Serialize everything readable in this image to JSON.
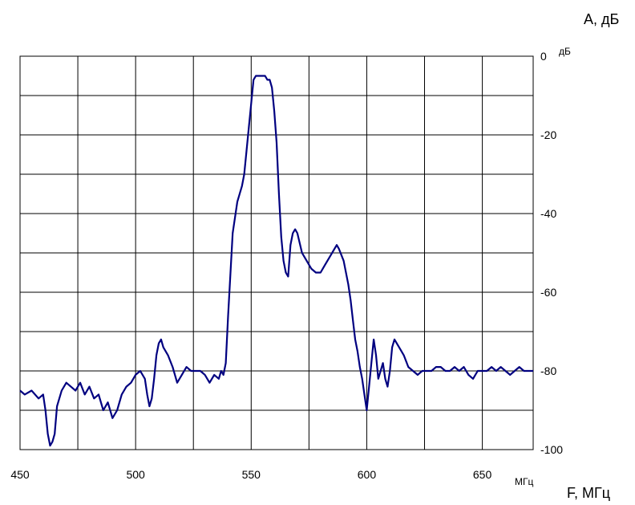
{
  "chart_data": {
    "type": "line",
    "title": "",
    "ylabel": "А, дБ",
    "y_unit": "дБ",
    "xlabel": "F, МГц",
    "x_unit": "МГц",
    "xlim": [
      450,
      672
    ],
    "ylim": [
      -100,
      0
    ],
    "x_ticks": [
      450,
      500,
      550,
      600,
      650
    ],
    "y_ticks": [
      0,
      -20,
      -40,
      -60,
      -80,
      -100
    ],
    "x_tick_labels": [
      "450",
      "500",
      "550",
      "600",
      "650"
    ],
    "y_tick_labels": [
      "0",
      "-20",
      "-40",
      "-60",
      "-80",
      "-100"
    ],
    "y_axis_side": "right",
    "grid": true,
    "line_color": "#000080",
    "series": [
      {
        "x": [
          450,
          452,
          455,
          458,
          460,
          461,
          462,
          463,
          464,
          465,
          466,
          468,
          470,
          472,
          474,
          476,
          478,
          480,
          482,
          484,
          486,
          488,
          490,
          492,
          494,
          496,
          498,
          500,
          502,
          504,
          505,
          506,
          507,
          508,
          509,
          510,
          511,
          512,
          514,
          516,
          518,
          520,
          522,
          524,
          526,
          528,
          530,
          532,
          534,
          536,
          537,
          538,
          539,
          540,
          542,
          544,
          545,
          546,
          547,
          548,
          549,
          550,
          551,
          552,
          553,
          554,
          555,
          556,
          557,
          558,
          559,
          560,
          561,
          562,
          563,
          564,
          565,
          566,
          567,
          568,
          569,
          570,
          572,
          574,
          576,
          578,
          580,
          582,
          584,
          586,
          587,
          588,
          590,
          592,
          593,
          594,
          595,
          596,
          597,
          598,
          599,
          600,
          601,
          602,
          603,
          604,
          605,
          606,
          607,
          608,
          609,
          610,
          611,
          612,
          614,
          616,
          618,
          620,
          622,
          624,
          626,
          628,
          630,
          632,
          634,
          636,
          638,
          640,
          642,
          644,
          646,
          648,
          650,
          652,
          654,
          656,
          658,
          660,
          662,
          664,
          666,
          668,
          670,
          672
        ],
        "values": [
          -85,
          -86,
          -85,
          -87,
          -86,
          -90,
          -96,
          -99,
          -98,
          -96,
          -89,
          -85,
          -83,
          -84,
          -85,
          -83,
          -86,
          -84,
          -87,
          -86,
          -90,
          -88,
          -92,
          -90,
          -86,
          -84,
          -83,
          -81,
          -80,
          -82,
          -86,
          -89,
          -87,
          -82,
          -76,
          -73,
          -72,
          -74,
          -76,
          -79,
          -83,
          -81,
          -79,
          -80,
          -80,
          -80,
          -81,
          -83,
          -81,
          -82,
          -80,
          -81,
          -78,
          -66,
          -45,
          -37,
          -35,
          -33,
          -30,
          -24,
          -18,
          -12,
          -6,
          -5,
          -5,
          -5,
          -5,
          -5,
          -6,
          -6,
          -8,
          -14,
          -22,
          -35,
          -46,
          -52,
          -55,
          -56,
          -48,
          -45,
          -44,
          -45,
          -50,
          -52,
          -54,
          -55,
          -55,
          -53,
          -51,
          -49,
          -48,
          -49,
          -52,
          -58,
          -62,
          -67,
          -72,
          -75,
          -79,
          -82,
          -86,
          -90,
          -84,
          -78,
          -72,
          -76,
          -82,
          -80,
          -78,
          -82,
          -84,
          -80,
          -74,
          -72,
          -74,
          -76,
          -79,
          -80,
          -81,
          -80,
          -80,
          -80,
          -79,
          -79,
          -80,
          -80,
          -79,
          -80,
          -79,
          -81,
          -82,
          -80,
          -80,
          -80,
          -79,
          -80,
          -79,
          -80,
          -81,
          -80,
          -79,
          -80,
          -80,
          -80
        ]
      }
    ]
  }
}
